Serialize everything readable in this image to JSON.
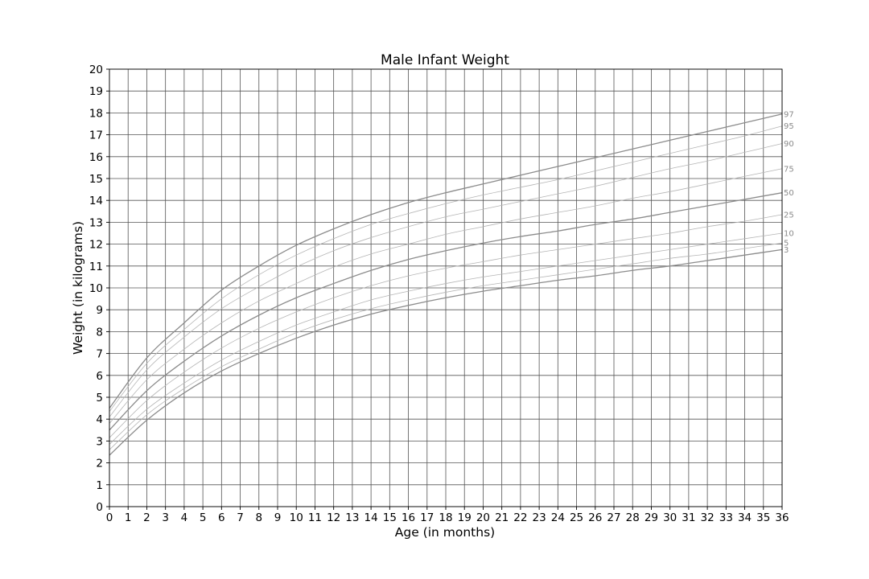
{
  "chart_data": {
    "type": "line",
    "title": "Male Infant Weight",
    "xlabel": "Age (in months)",
    "ylabel": "Weight (in kilograms)",
    "xlim": [
      0,
      36
    ],
    "ylim": [
      0,
      20
    ],
    "x_ticks": [
      "0",
      "1",
      "2",
      "3",
      "4",
      "5",
      "6",
      "7",
      "8",
      "9",
      "10",
      "11",
      "12",
      "13",
      "14",
      "15",
      "16",
      "17",
      "18",
      "19",
      "20",
      "21",
      "22",
      "23",
      "24",
      "25",
      "26",
      "27",
      "28",
      "29",
      "30",
      "31",
      "32",
      "33",
      "34",
      "35",
      "36"
    ],
    "y_ticks": [
      "0",
      "1",
      "2",
      "3",
      "4",
      "5",
      "6",
      "7",
      "8",
      "9",
      "10",
      "11",
      "12",
      "13",
      "14",
      "15",
      "16",
      "17",
      "18",
      "19",
      "20"
    ],
    "grid": true,
    "legend": "none",
    "colors": {
      "major": "#8c8c8c",
      "minor": "#b5b5b5",
      "label": "#8a8a8a",
      "grid": "#555555"
    },
    "x": [
      0,
      2,
      4,
      6,
      8,
      10,
      12,
      14,
      16,
      18,
      20,
      22,
      24,
      26,
      28,
      30,
      32,
      34,
      36
    ],
    "series": [
      {
        "name": "97",
        "label": "97",
        "emphasis": "major",
        "values": [
          4.5,
          6.8,
          8.4,
          9.9,
          11.0,
          11.95,
          12.7,
          13.35,
          13.9,
          14.35,
          14.75,
          15.15,
          15.55,
          15.95,
          16.35,
          16.75,
          17.15,
          17.55,
          17.95
        ]
      },
      {
        "name": "95",
        "label": "95",
        "emphasis": "minor",
        "values": [
          4.35,
          6.55,
          8.1,
          9.5,
          10.6,
          11.5,
          12.25,
          12.9,
          13.4,
          13.85,
          14.25,
          14.6,
          14.95,
          15.35,
          15.75,
          16.15,
          16.55,
          16.95,
          17.4
        ]
      },
      {
        "name": "90",
        "label": "90",
        "emphasis": "minor",
        "values": [
          4.1,
          6.25,
          7.75,
          9.05,
          10.05,
          10.95,
          11.7,
          12.3,
          12.8,
          13.25,
          13.6,
          13.95,
          14.3,
          14.65,
          15.05,
          15.45,
          15.8,
          16.2,
          16.6
        ]
      },
      {
        "name": "75",
        "label": "75",
        "emphasis": "minor",
        "values": [
          3.8,
          5.8,
          7.2,
          8.4,
          9.4,
          10.2,
          10.95,
          11.55,
          12.0,
          12.45,
          12.8,
          13.15,
          13.45,
          13.75,
          14.1,
          14.4,
          14.75,
          15.1,
          15.45
        ]
      },
      {
        "name": "50",
        "label": "50",
        "emphasis": "major",
        "values": [
          3.5,
          5.3,
          6.65,
          7.8,
          8.75,
          9.55,
          10.2,
          10.8,
          11.3,
          11.7,
          12.05,
          12.35,
          12.6,
          12.9,
          13.15,
          13.45,
          13.75,
          14.05,
          14.35
        ]
      },
      {
        "name": "25",
        "label": "25",
        "emphasis": "minor",
        "values": [
          3.15,
          4.85,
          6.15,
          7.25,
          8.15,
          8.9,
          9.55,
          10.1,
          10.55,
          10.9,
          11.2,
          11.5,
          11.75,
          12.0,
          12.25,
          12.5,
          12.8,
          13.05,
          13.35
        ]
      },
      {
        "name": "10",
        "label": "10",
        "emphasis": "minor",
        "values": [
          2.85,
          4.45,
          5.65,
          6.7,
          7.55,
          8.3,
          8.9,
          9.45,
          9.85,
          10.2,
          10.5,
          10.75,
          11.0,
          11.25,
          11.5,
          11.75,
          12.0,
          12.25,
          12.5
        ]
      },
      {
        "name": "5",
        "label": "5",
        "emphasis": "minor",
        "values": [
          2.6,
          4.2,
          5.4,
          6.4,
          7.2,
          7.95,
          8.55,
          9.05,
          9.45,
          9.8,
          10.1,
          10.35,
          10.6,
          10.85,
          11.1,
          11.35,
          11.55,
          11.8,
          12.05
        ]
      },
      {
        "name": "3",
        "label": "3",
        "emphasis": "major",
        "values": [
          2.35,
          3.95,
          5.2,
          6.2,
          7.0,
          7.7,
          8.3,
          8.8,
          9.2,
          9.55,
          9.85,
          10.1,
          10.35,
          10.55,
          10.8,
          11.0,
          11.25,
          11.5,
          11.75
        ]
      }
    ]
  }
}
